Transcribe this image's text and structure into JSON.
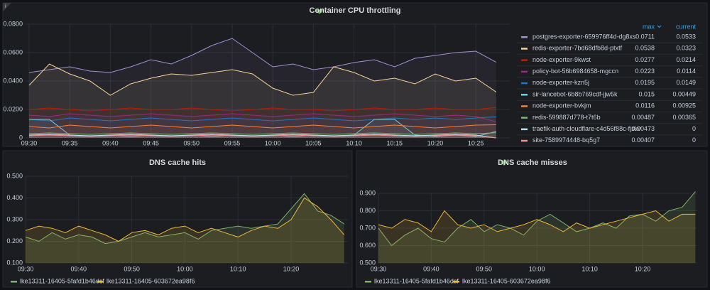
{
  "chart_data": [
    {
      "type": "area",
      "title": "Container CPU throttling",
      "categories": [
        "09:30",
        null,
        "09:35",
        null,
        "09:40",
        null,
        "09:45",
        null,
        "09:50",
        null,
        "09:55",
        null,
        "10:00",
        null,
        "10:05",
        null,
        "10:10",
        null,
        "10:15",
        null,
        "10:20",
        null,
        "10:25",
        null
      ],
      "ylim": [
        0,
        0.08
      ],
      "yticks": [
        0,
        {
          "value": 0.02,
          "label": "0.0200"
        },
        {
          "value": 0.04,
          "label": "0.0400"
        },
        {
          "value": 0.06,
          "label": "0.0600"
        },
        {
          "value": 0.08,
          "label": "0.0800"
        }
      ],
      "legend_columns": [
        "max",
        "current"
      ],
      "series": [
        {
          "name": "postgres-exporter-659976ff4d-dg8xs",
          "color": "#a28fd0",
          "max": 0.0711,
          "current": 0.0533,
          "values": [
            0.046,
            0.048,
            0.05,
            0.047,
            0.046,
            0.05,
            0.055,
            0.052,
            0.058,
            0.065,
            0.07,
            0.06,
            0.05,
            0.052,
            0.048,
            0.05,
            0.053,
            0.055,
            0.05,
            0.056,
            0.058,
            0.06,
            0.061,
            0.0533
          ]
        },
        {
          "name": "redis-exporter-7bd68dfb8d-ptxtf",
          "color": "#f4d598",
          "max": 0.0538,
          "current": 0.0323,
          "values": [
            0.037,
            0.052,
            0.045,
            0.04,
            0.03,
            0.038,
            0.042,
            0.045,
            0.044,
            0.046,
            0.048,
            0.045,
            0.035,
            0.03,
            0.032,
            0.05,
            0.046,
            0.04,
            0.042,
            0.038,
            0.045,
            0.04,
            0.042,
            0.0323
          ]
        },
        {
          "name": "node-exporter-9kwst",
          "color": "#bf1b00",
          "max": 0.0277,
          "current": 0.0214,
          "values": [
            0.02,
            0.021,
            0.02,
            0.019,
            0.02,
            0.021,
            0.02,
            0.02,
            0.021,
            0.02,
            0.019,
            0.02,
            0.021,
            0.02,
            0.02,
            0.019,
            0.02,
            0.021,
            0.02,
            0.02,
            0.021,
            0.02,
            0.02,
            0.0214
          ]
        },
        {
          "name": "policy-bot-56b6984658-mgccn",
          "color": "#962d82",
          "max": 0.0223,
          "current": 0.0114,
          "values": [
            0.016,
            0.015,
            0.017,
            0.016,
            0.015,
            0.016,
            0.017,
            0.016,
            0.015,
            0.016,
            0.017,
            0.016,
            0.015,
            0.016,
            0.017,
            0.016,
            0.015,
            0.016,
            0.017,
            0.016,
            0.015,
            0.016,
            0.015,
            0.0114
          ]
        },
        {
          "name": "node-exporter-kzn5j",
          "color": "#1f78c1",
          "max": 0.0195,
          "current": 0.0149,
          "values": [
            0.013,
            0.012,
            0.014,
            0.013,
            0.012,
            0.013,
            0.014,
            0.013,
            0.012,
            0.013,
            0.014,
            0.013,
            0.012,
            0.013,
            0.014,
            0.013,
            0.012,
            0.013,
            0.014,
            0.013,
            0.014,
            0.013,
            0.014,
            0.0149
          ]
        },
        {
          "name": "sir-lancebot-6b8b769cdf-jjw5k",
          "color": "#6ed0e0",
          "max": 0.015,
          "current": 0.00449,
          "values": [
            0.013,
            0.013,
            0.002,
            0.001,
            0.002,
            0.001,
            0.002,
            0.001,
            0.002,
            0.001,
            0.002,
            0.001,
            0.002,
            0.001,
            0.002,
            0.001,
            0.002,
            0.013,
            0.013,
            0.002,
            0.001,
            0.002,
            0.001,
            0.00449
          ]
        },
        {
          "name": "node-exporter-bvkjm",
          "color": "#ef843c",
          "max": 0.0116,
          "current": 0.00925,
          "values": [
            0.008,
            0.007,
            0.009,
            0.008,
            0.007,
            0.008,
            0.009,
            0.008,
            0.007,
            0.008,
            0.009,
            0.008,
            0.007,
            0.008,
            0.009,
            0.008,
            0.007,
            0.008,
            0.009,
            0.008,
            0.007,
            0.008,
            0.009,
            0.00925
          ]
        },
        {
          "name": "redis-599887d778-t7t6b",
          "color": "#7eb26d",
          "max": 0.00487,
          "current": 0.00365,
          "values": [
            0.003,
            0.0035,
            0.003,
            0.0025,
            0.003,
            0.0035,
            0.003,
            0.0025,
            0.003,
            0.0035,
            0.003,
            0.0025,
            0.003,
            0.0035,
            0.003,
            0.0025,
            0.003,
            0.0035,
            0.003,
            0.0025,
            0.003,
            0.0035,
            0.003,
            0.00365
          ]
        },
        {
          "name": "traefik-auth-cloudflare-c4d56f88c-fjskv",
          "color": "#badff4",
          "max": 0.00473,
          "current": 0,
          "values": [
            0.002,
            0.0025,
            0.002,
            0.0015,
            0.002,
            0.0025,
            0.002,
            0.0015,
            0.002,
            0.0025,
            0.002,
            0.0015,
            0.002,
            0.0025,
            0.002,
            0.0015,
            0.002,
            0.0025,
            0.002,
            0.0015,
            0.002,
            0.0025,
            0.002,
            0
          ]
        },
        {
          "name": "site-7589974448-bq5g7",
          "color": "#f29191",
          "max": 0.00407,
          "current": 0,
          "values": [
            0.0015,
            0.002,
            0.0015,
            0.001,
            0.0015,
            0.002,
            0.0015,
            0.001,
            0.0015,
            0.002,
            0.0015,
            0.001,
            0.0015,
            0.002,
            0.0015,
            0.001,
            0.0015,
            0.002,
            0.0015,
            0.001,
            0.0015,
            0.002,
            0.0015,
            0
          ]
        }
      ]
    },
    {
      "type": "area",
      "title": "DNS cache hits",
      "categories": [
        "09:30",
        null,
        null,
        null,
        "09:40",
        null,
        null,
        null,
        "09:50",
        null,
        null,
        null,
        "10:00",
        null,
        null,
        null,
        "10:10",
        null,
        null,
        null,
        "10:20",
        null,
        null,
        null,
        null
      ],
      "ylim": [
        0.1,
        0.5
      ],
      "yticks": [
        {
          "value": 0.1,
          "label": "0.100"
        },
        {
          "value": 0.2,
          "label": "0.200"
        },
        {
          "value": 0.3,
          "label": "0.300"
        },
        {
          "value": 0.4,
          "label": "0.400"
        },
        {
          "value": 0.5,
          "label": "0.500"
        }
      ],
      "series": [
        {
          "name": "lke13311-16405-5fafd1b46dcf",
          "color": "#7eb26d",
          "values": [
            0.22,
            0.2,
            0.24,
            0.21,
            0.23,
            0.22,
            0.19,
            0.2,
            0.22,
            0.24,
            0.22,
            0.23,
            0.24,
            0.21,
            0.25,
            0.26,
            0.27,
            0.26,
            0.27,
            0.28,
            0.35,
            0.42,
            0.34,
            0.32,
            0.28
          ]
        },
        {
          "name": "lke13311-16405-603672ea98f6",
          "color": "#eab839",
          "values": [
            0.25,
            0.27,
            0.26,
            0.24,
            0.27,
            0.25,
            0.23,
            0.2,
            0.24,
            0.25,
            0.23,
            0.26,
            0.27,
            0.24,
            0.26,
            0.24,
            0.22,
            0.25,
            0.27,
            0.26,
            0.3,
            0.4,
            0.36,
            0.3,
            0.23
          ]
        }
      ]
    },
    {
      "type": "area",
      "title": "DNS cache misses",
      "categories": [
        "09:30",
        null,
        null,
        null,
        "09:40",
        null,
        null,
        null,
        "09:50",
        null,
        null,
        null,
        "10:00",
        null,
        null,
        null,
        "10:10",
        null,
        null,
        null,
        "10:20",
        null,
        null,
        null,
        null
      ],
      "ylim": [
        0.5,
        0.9
      ],
      "yticks": [
        {
          "value": 0.5,
          "label": "0.500"
        },
        {
          "value": 0.6,
          "label": "0.600"
        },
        {
          "value": 0.7,
          "label": "0.700"
        },
        {
          "value": 0.8,
          "label": "0.800"
        },
        {
          "value": 0.9,
          "label": "0.900"
        }
      ],
      "series": [
        {
          "name": "lke13311-16405-5fafd1b46dcf",
          "color": "#7eb26d",
          "values": [
            0.7,
            0.6,
            0.66,
            0.7,
            0.64,
            0.62,
            0.7,
            0.75,
            0.68,
            0.72,
            0.7,
            0.66,
            0.74,
            0.78,
            0.73,
            0.68,
            0.7,
            0.73,
            0.7,
            0.77,
            0.78,
            0.74,
            0.8,
            0.82,
            0.91
          ]
        },
        {
          "name": "lke13311-16405-603672ea98f6",
          "color": "#eab839",
          "values": [
            0.72,
            0.7,
            0.75,
            0.73,
            0.68,
            0.8,
            0.72,
            0.7,
            0.72,
            0.68,
            0.7,
            0.72,
            0.75,
            0.72,
            0.68,
            0.73,
            0.7,
            0.72,
            0.74,
            0.76,
            0.78,
            0.8,
            0.74,
            0.78,
            0.78
          ]
        }
      ]
    }
  ]
}
